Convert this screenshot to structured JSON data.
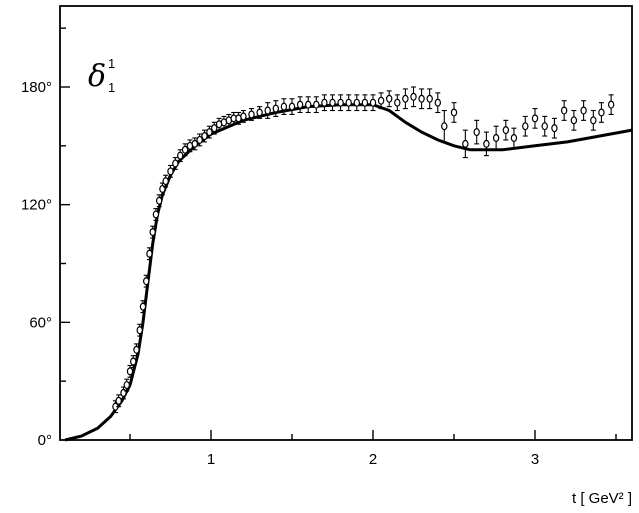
{
  "chart_data": {
    "type": "scatter",
    "symbol": {
      "main": "δ",
      "superscript": "1",
      "subscript": "1"
    },
    "xlabel": "t [ GeV² ]",
    "ylabel": "",
    "xlim": [
      0.0,
      3.6
    ],
    "ylim": [
      0,
      225
    ],
    "x_ticks": [
      {
        "value": 1,
        "label": "1"
      },
      {
        "value": 2,
        "label": "2"
      },
      {
        "value": 3,
        "label": "3"
      }
    ],
    "y_ticks": [
      {
        "value": 0,
        "label": "0°"
      },
      {
        "value": 60,
        "label": "60°"
      },
      {
        "value": 120,
        "label": "120°"
      },
      {
        "value": 180,
        "label": "180°"
      }
    ],
    "grid": false,
    "series": [
      {
        "kind": "line",
        "points": [
          [
            0.1,
            0
          ],
          [
            0.2,
            2
          ],
          [
            0.3,
            6
          ],
          [
            0.38,
            12
          ],
          [
            0.45,
            20
          ],
          [
            0.5,
            28
          ],
          [
            0.55,
            44
          ],
          [
            0.58,
            60
          ],
          [
            0.61,
            80
          ],
          [
            0.64,
            100
          ],
          [
            0.67,
            115
          ],
          [
            0.7,
            125
          ],
          [
            0.75,
            135
          ],
          [
            0.8,
            142
          ],
          [
            0.9,
            150
          ],
          [
            1.0,
            156
          ],
          [
            1.2,
            163
          ],
          [
            1.4,
            167
          ],
          [
            1.6,
            170
          ],
          [
            1.8,
            171
          ],
          [
            2.0,
            171
          ],
          [
            2.1,
            168
          ],
          [
            2.2,
            162
          ],
          [
            2.3,
            157
          ],
          [
            2.4,
            153
          ],
          [
            2.5,
            150
          ],
          [
            2.6,
            148
          ],
          [
            2.7,
            148
          ],
          [
            2.8,
            148
          ],
          [
            3.0,
            150
          ],
          [
            3.2,
            152
          ],
          [
            3.4,
            155
          ],
          [
            3.6,
            158
          ]
        ]
      },
      {
        "kind": "points",
        "points": [
          [
            0.41,
            17,
            3
          ],
          [
            0.43,
            20,
            3
          ],
          [
            0.46,
            24,
            3
          ],
          [
            0.48,
            28,
            3
          ],
          [
            0.5,
            35,
            3
          ],
          [
            0.52,
            40,
            3
          ],
          [
            0.54,
            46,
            3
          ],
          [
            0.56,
            56,
            3
          ],
          [
            0.58,
            68,
            3
          ],
          [
            0.6,
            81,
            3
          ],
          [
            0.62,
            95,
            3
          ],
          [
            0.64,
            106,
            3
          ],
          [
            0.66,
            115,
            3
          ],
          [
            0.68,
            122,
            3
          ],
          [
            0.7,
            128,
            3
          ],
          [
            0.72,
            132,
            3
          ],
          [
            0.75,
            137,
            3
          ],
          [
            0.78,
            141,
            3
          ],
          [
            0.81,
            145,
            3
          ],
          [
            0.84,
            148,
            3
          ],
          [
            0.87,
            150,
            3
          ],
          [
            0.9,
            151,
            3
          ],
          [
            0.93,
            153,
            3
          ],
          [
            0.96,
            155,
            3
          ],
          [
            0.99,
            157,
            3
          ],
          [
            1.02,
            159,
            3
          ],
          [
            1.05,
            161,
            3
          ],
          [
            1.08,
            162,
            3
          ],
          [
            1.11,
            163,
            3
          ],
          [
            1.14,
            164,
            3
          ],
          [
            1.17,
            164,
            3
          ],
          [
            1.2,
            165,
            3
          ],
          [
            1.25,
            166,
            3
          ],
          [
            1.3,
            167,
            3
          ],
          [
            1.35,
            168,
            4
          ],
          [
            1.4,
            169,
            4
          ],
          [
            1.45,
            170,
            4
          ],
          [
            1.5,
            170,
            4
          ],
          [
            1.55,
            171,
            4
          ],
          [
            1.6,
            171,
            4
          ],
          [
            1.65,
            171,
            4
          ],
          [
            1.7,
            172,
            4
          ],
          [
            1.75,
            172,
            4
          ],
          [
            1.8,
            172,
            4
          ],
          [
            1.85,
            172,
            4
          ],
          [
            1.9,
            172,
            4
          ],
          [
            1.95,
            172,
            4
          ],
          [
            2.0,
            172,
            4
          ],
          [
            2.05,
            173,
            4
          ],
          [
            2.1,
            174,
            4
          ],
          [
            2.15,
            172,
            4
          ],
          [
            2.2,
            174,
            5
          ],
          [
            2.25,
            175,
            5
          ],
          [
            2.3,
            174,
            5
          ],
          [
            2.35,
            174,
            5
          ],
          [
            2.4,
            172,
            5
          ],
          [
            2.44,
            160,
            8
          ],
          [
            2.5,
            167,
            5
          ],
          [
            2.57,
            151,
            7
          ],
          [
            2.64,
            157,
            6
          ],
          [
            2.7,
            151,
            6
          ],
          [
            2.76,
            154,
            6
          ],
          [
            2.82,
            158,
            5
          ],
          [
            2.87,
            154,
            5
          ],
          [
            2.94,
            160,
            5
          ],
          [
            3.0,
            164,
            5
          ],
          [
            3.06,
            160,
            5
          ],
          [
            3.12,
            159,
            5
          ],
          [
            3.18,
            168,
            5
          ],
          [
            3.24,
            163,
            5
          ],
          [
            3.3,
            168,
            5
          ],
          [
            3.36,
            163,
            5
          ],
          [
            3.41,
            167,
            5
          ],
          [
            3.47,
            171,
            5
          ]
        ]
      }
    ]
  }
}
